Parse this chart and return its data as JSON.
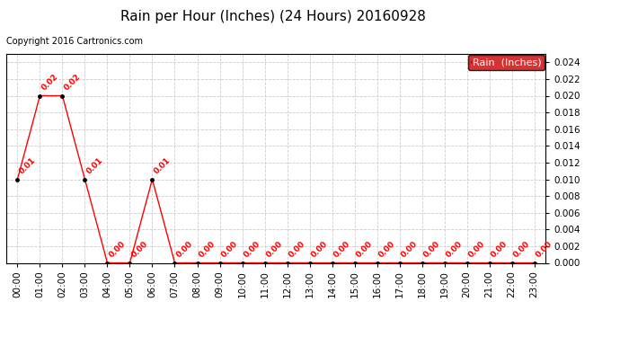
{
  "title": "Rain per Hour (Inches) (24 Hours) 20160928",
  "copyright": "Copyright 2016 Cartronics.com",
  "legend_label": "Rain  (Inches)",
  "hours": [
    "00:00",
    "01:00",
    "02:00",
    "03:00",
    "04:00",
    "05:00",
    "06:00",
    "07:00",
    "08:00",
    "09:00",
    "10:00",
    "11:00",
    "12:00",
    "13:00",
    "14:00",
    "15:00",
    "16:00",
    "17:00",
    "18:00",
    "19:00",
    "20:00",
    "21:00",
    "22:00",
    "23:00"
  ],
  "values": [
    0.01,
    0.02,
    0.02,
    0.01,
    0.0,
    0.0,
    0.01,
    0.0,
    0.0,
    0.0,
    0.0,
    0.0,
    0.0,
    0.0,
    0.0,
    0.0,
    0.0,
    0.0,
    0.0,
    0.0,
    0.0,
    0.0,
    0.0,
    0.0
  ],
  "ylim": [
    0.0,
    0.025
  ],
  "yticks": [
    0.0,
    0.002,
    0.004,
    0.006,
    0.008,
    0.01,
    0.012,
    0.014,
    0.016,
    0.018,
    0.02,
    0.022,
    0.024
  ],
  "line_color": "#FF0000",
  "marker_color": "#000000",
  "label_color": "#FF0000",
  "legend_bg": "#CC0000",
  "legend_text_color": "#FFFFFF",
  "title_color": "#000000",
  "grid_color": "#CCCCCC",
  "bg_color": "#FFFFFF",
  "title_fontsize": 11,
  "copyright_fontsize": 7,
  "label_fontsize": 6.5,
  "tick_fontsize": 7.5,
  "legend_fontsize": 8
}
